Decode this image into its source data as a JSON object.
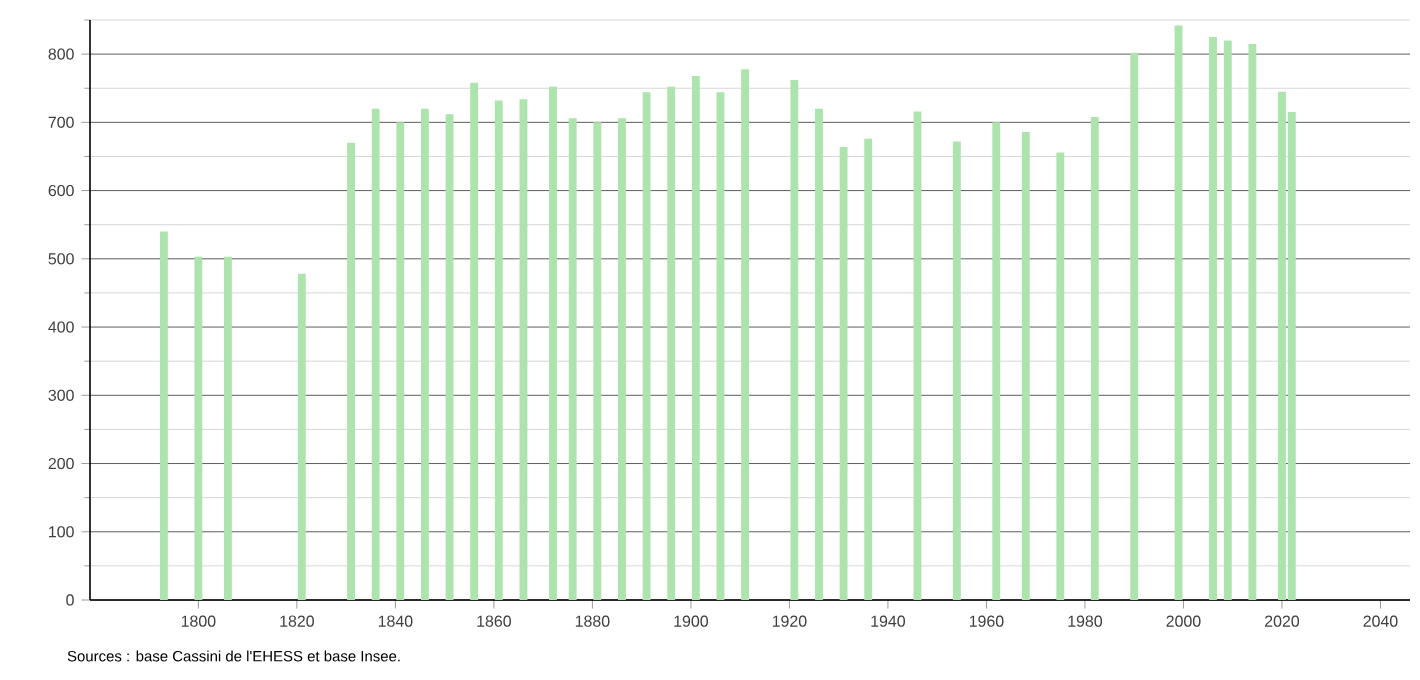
{
  "chart_data": {
    "type": "bar",
    "color": "#ade4ad",
    "x": [
      1793,
      1800,
      1806,
      1821,
      1831,
      1836,
      1841,
      1846,
      1851,
      1856,
      1861,
      1866,
      1872,
      1876,
      1881,
      1886,
      1891,
      1896,
      1901,
      1906,
      1911,
      1921,
      1926,
      1931,
      1936,
      1946,
      1954,
      1962,
      1968,
      1975,
      1982,
      1990,
      1999,
      2006,
      2009,
      2014,
      2020,
      2022
    ],
    "values": [
      540,
      503,
      503,
      478,
      670,
      720,
      700,
      720,
      712,
      758,
      732,
      734,
      752,
      706,
      700,
      706,
      744,
      752,
      768,
      744,
      778,
      762,
      720,
      664,
      676,
      716,
      672,
      700,
      686,
      656,
      708,
      802,
      842,
      825,
      820,
      815,
      745,
      715
    ],
    "xlim": [
      1778,
      2046
    ],
    "xticks": [
      1800,
      1820,
      1840,
      1860,
      1880,
      1900,
      1920,
      1940,
      1960,
      1980,
      2000,
      2020,
      2040
    ],
    "ylim": [
      0,
      850
    ],
    "yticks": [
      0,
      {
        "value": 50,
        "label": null
      },
      100,
      {
        "value": 150,
        "label": null
      },
      200,
      {
        "value": 250,
        "label": null
      },
      300,
      {
        "value": 350,
        "label": null
      },
      400,
      {
        "value": 450,
        "label": null
      },
      500,
      {
        "value": 550,
        "label": null
      },
      600,
      {
        "value": 650,
        "label": null
      },
      700,
      {
        "value": 750,
        "label": null
      },
      800,
      {
        "value": 850,
        "label": null
      }
    ],
    "grid": "y",
    "annotations": [
      "Sources : base Cassini de l'EHESS et base Insee."
    ]
  }
}
